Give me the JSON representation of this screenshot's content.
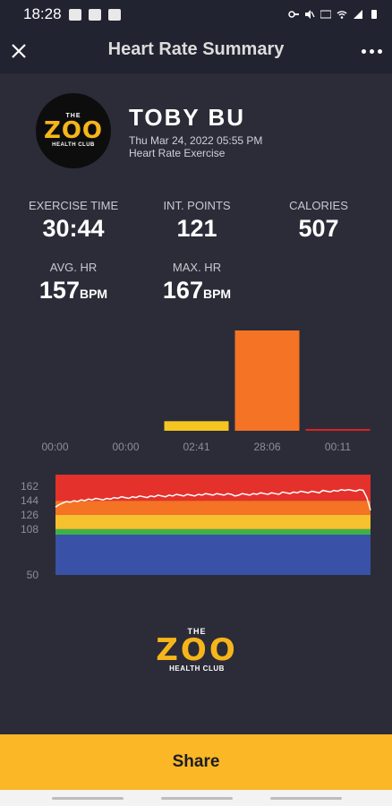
{
  "status_bar": {
    "time": "18:28"
  },
  "header": {
    "title": "Heart Rate Summary"
  },
  "profile": {
    "name": "TOBY BU",
    "datetime": "Thu Mar 24, 2022 05:55 PM",
    "workout_type": "Heart Rate Exercise",
    "logo": {
      "top": "THE",
      "main": "ZOO",
      "bottom": "HEALTH CLUB"
    }
  },
  "stats": {
    "exercise_time": {
      "label": "EXERCISE TIME",
      "value": "30:44"
    },
    "int_points": {
      "label": "INT. POINTS",
      "value": "121"
    },
    "calories": {
      "label": "CALORIES",
      "value": "507"
    },
    "avg_hr": {
      "label": "AVG. HR",
      "value": "157",
      "unit": "BPM"
    },
    "max_hr": {
      "label": "MAX. HR",
      "value": "167",
      "unit": "BPM"
    }
  },
  "zone_chart": {
    "type": "bar",
    "categories": [
      "00:00",
      "00:00",
      "02:41",
      "28:06",
      "00:11"
    ],
    "values": [
      0,
      0,
      2.68,
      28.1,
      0.18
    ],
    "colors": [
      "#8a8a8a",
      "#3a5bb0",
      "#f6c521",
      "#f47324",
      "#e02020"
    ]
  },
  "hr_chart": {
    "type": "line",
    "ticks": [
      "162",
      "144",
      "126",
      "108",
      "50"
    ],
    "ylim": [
      50,
      177
    ],
    "zones": [
      {
        "from": 50,
        "to": 101,
        "color": "#3a51a8"
      },
      {
        "from": 101,
        "to": 108,
        "color": "#3fb049"
      },
      {
        "from": 108,
        "to": 126,
        "color": "#f5c12e"
      },
      {
        "from": 126,
        "to": 144,
        "color": "#f47324"
      },
      {
        "from": 144,
        "to": 177,
        "color": "#e5312b"
      }
    ],
    "series_color": "#ffffff",
    "values": [
      136,
      139,
      141,
      143,
      142,
      144,
      143,
      145,
      144,
      146,
      145,
      147,
      146,
      145,
      147,
      146,
      148,
      147,
      149,
      148,
      147,
      149,
      148,
      150,
      149,
      148,
      150,
      149,
      151,
      150,
      149,
      151,
      150,
      152,
      151,
      150,
      152,
      151,
      150,
      152,
      151,
      153,
      152,
      151,
      153,
      152,
      151,
      153,
      152,
      150,
      151,
      153,
      152,
      151,
      153,
      152,
      154,
      153,
      152,
      154,
      153,
      152,
      155,
      154,
      153,
      155,
      154,
      156,
      155,
      154,
      156,
      155,
      154,
      157,
      156,
      155,
      157,
      156,
      158,
      157,
      158,
      157,
      156,
      158,
      157,
      148,
      132
    ]
  },
  "share": {
    "label": "Share"
  }
}
